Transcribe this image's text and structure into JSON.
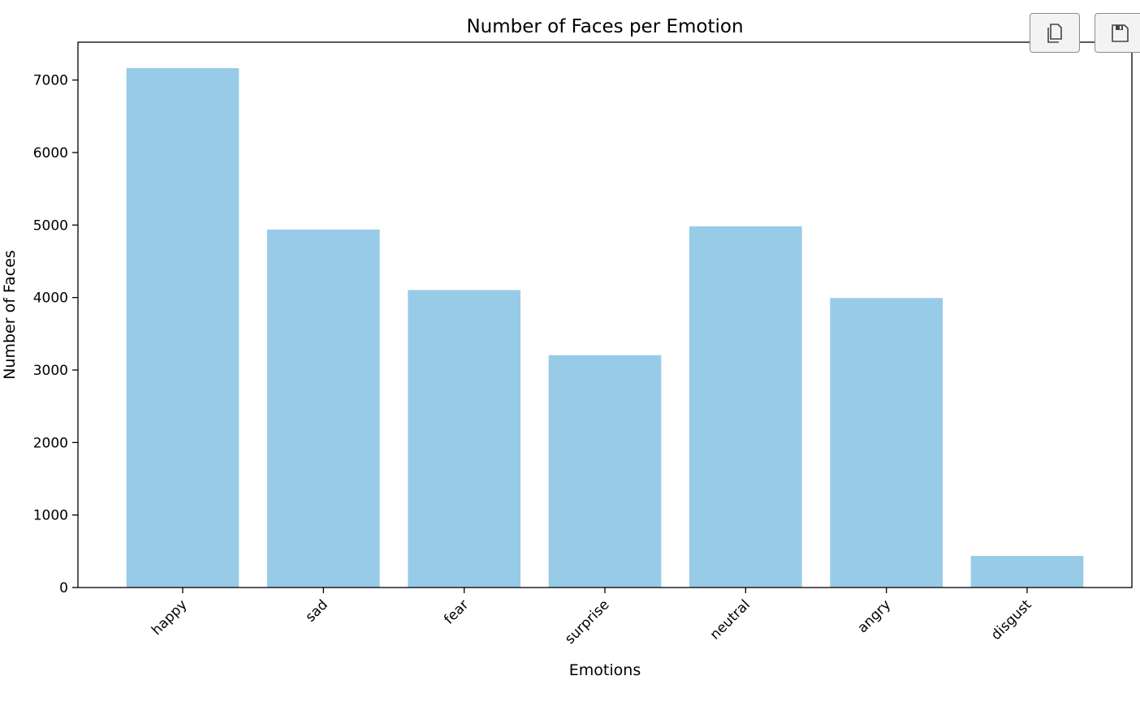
{
  "toolbar": {
    "copy_icon": "copy-icon",
    "save_icon": "floppy-disk-icon"
  },
  "chart_data": {
    "type": "bar",
    "title": "Number of Faces per Emotion",
    "xlabel": "Emotions",
    "ylabel": "Number of Faces",
    "categories": [
      "happy",
      "sad",
      "fear",
      "surprise",
      "neutral",
      "angry",
      "disgust"
    ],
    "values": [
      7164,
      4938,
      4103,
      3205,
      4982,
      3993,
      436
    ],
    "ylim": [
      0,
      7522
    ],
    "yticks": [
      0,
      1000,
      2000,
      3000,
      4000,
      5000,
      6000,
      7000
    ],
    "bar_color": "#98cbe7",
    "grid": false,
    "legend": false,
    "xtick_rotation": 45
  }
}
